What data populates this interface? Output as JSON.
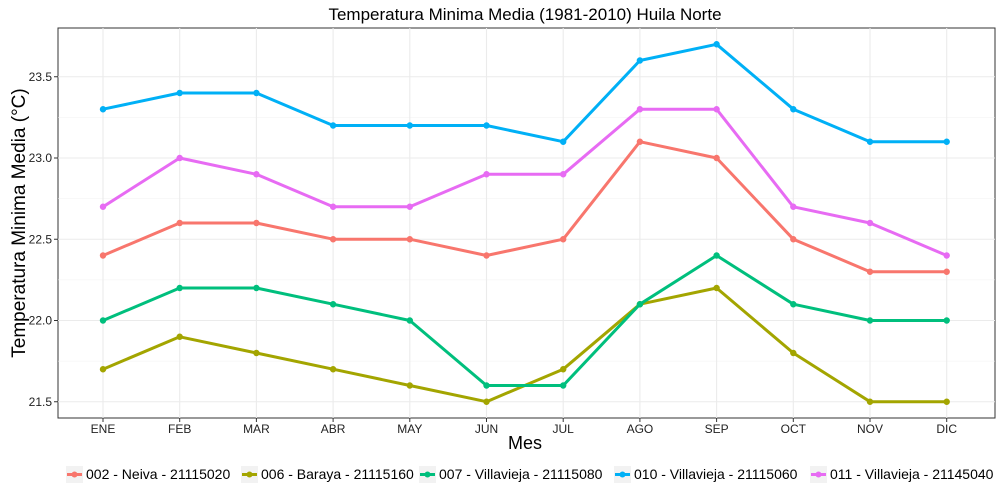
{
  "chart_data": {
    "type": "line",
    "title": "Temperatura Minima Media (1981-2010)  Huila Norte",
    "xlabel": "Mes",
    "ylabel": "Temperatura Minima Media  (°C)",
    "categories": [
      "ENE",
      "FEB",
      "MAR",
      "ABR",
      "MAY",
      "JUN",
      "JUL",
      "AGO",
      "SEP",
      "OCT",
      "NOV",
      "DIC"
    ],
    "ylim": [
      21.4,
      23.8
    ],
    "yticks": [
      "21.5",
      "22.0",
      "22.5",
      "23.0",
      "23.5"
    ],
    "legend_position": "bottom",
    "grid": true,
    "series": [
      {
        "name": "002 - Neiva - 21115020",
        "color": "#F8766D",
        "values": [
          22.4,
          22.6,
          22.6,
          22.5,
          22.5,
          22.4,
          22.5,
          23.1,
          23.0,
          22.5,
          22.3,
          22.3
        ]
      },
      {
        "name": "006 - Baraya - 21115160",
        "color": "#A3A500",
        "values": [
          21.7,
          21.9,
          21.8,
          21.7,
          21.6,
          21.5,
          21.7,
          22.1,
          22.2,
          21.8,
          21.5,
          21.5
        ]
      },
      {
        "name": "007 - Villavieja - 21115080",
        "color": "#00BF7D",
        "values": [
          22.0,
          22.2,
          22.2,
          22.1,
          22.0,
          21.6,
          21.6,
          22.1,
          22.4,
          22.1,
          22.0,
          22.0
        ]
      },
      {
        "name": "010 - Villavieja - 21115060",
        "color": "#00B0F6",
        "values": [
          23.3,
          23.4,
          23.4,
          23.2,
          23.2,
          23.2,
          23.1,
          23.6,
          23.7,
          23.3,
          23.1,
          23.1
        ]
      },
      {
        "name": "011 - Villavieja - 21145040",
        "color": "#E76BF3",
        "values": [
          22.7,
          23.0,
          22.9,
          22.7,
          22.7,
          22.9,
          22.9,
          23.3,
          23.3,
          22.7,
          22.6,
          22.4
        ]
      }
    ]
  }
}
